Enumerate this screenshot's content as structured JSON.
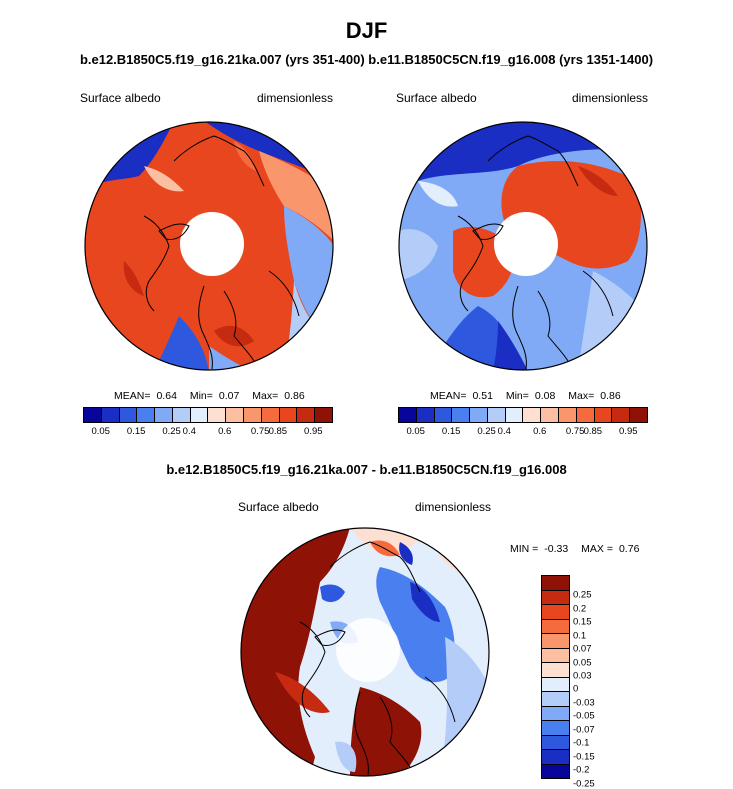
{
  "title": "DJF",
  "subtitle": "b.e12.B1850C5.f19_g16.21ka.007 (yrs 351-400) b.e11.B1850C5CN.f19_g16.008 (yrs 1351-1400)",
  "colors": {
    "albedo_scale": [
      "#08069a",
      "#1b2ec4",
      "#2e59de",
      "#4a7ff0",
      "#80aaf5",
      "#b4cdf8",
      "#e3eefc",
      "#fde0d2",
      "#fcbfa2",
      "#fa966c",
      "#f56b3e",
      "#e8461e",
      "#c62a10",
      "#8e1205"
    ],
    "diff_scale": [
      "#8e1205",
      "#c62a10",
      "#e8461e",
      "#f56b3e",
      "#fa966c",
      "#fcbfa2",
      "#fde0d2",
      "#e3eefc",
      "#b4cdf8",
      "#80aaf5",
      "#4a7ff0",
      "#2e59de",
      "#1b2ec4",
      "#08069a"
    ]
  },
  "panels": {
    "left": {
      "field": "Surface albedo",
      "units": "dimensionless",
      "mean_label": "MEAN=",
      "mean": "0.64",
      "min_label": "Min=",
      "min": "0.07",
      "max_label": "Max=",
      "max": "0.86",
      "colorbar_ticks": [
        "0.05",
        "0.15",
        "0.25",
        "0.4",
        "0.6",
        "0.75",
        "0.85",
        "0.95"
      ]
    },
    "right": {
      "field": "Surface albedo",
      "units": "dimensionless",
      "mean_label": "MEAN=",
      "mean": "0.51",
      "min_label": "Min=",
      "min": "0.08",
      "max_label": "Max=",
      "max": "0.86",
      "colorbar_ticks": [
        "0.05",
        "0.15",
        "0.25",
        "0.4",
        "0.6",
        "0.75",
        "0.85",
        "0.95"
      ]
    },
    "diff": {
      "title": "b.e12.B1850C5.f19_g16.21ka.007 - b.e11.B1850C5CN.f19_g16.008",
      "field": "Surface albedo",
      "units": "dimensionless",
      "min_label": "MIN =",
      "min": "-0.33",
      "max_label": "MAX =",
      "max": "0.76",
      "colorbar_ticks": [
        "0.25",
        "0.2",
        "0.15",
        "0.1",
        "0.07",
        "0.05",
        "0.03",
        "0",
        "-0.03",
        "-0.05",
        "-0.07",
        "-0.1",
        "-0.15",
        "-0.2",
        "-0.25"
      ]
    }
  }
}
